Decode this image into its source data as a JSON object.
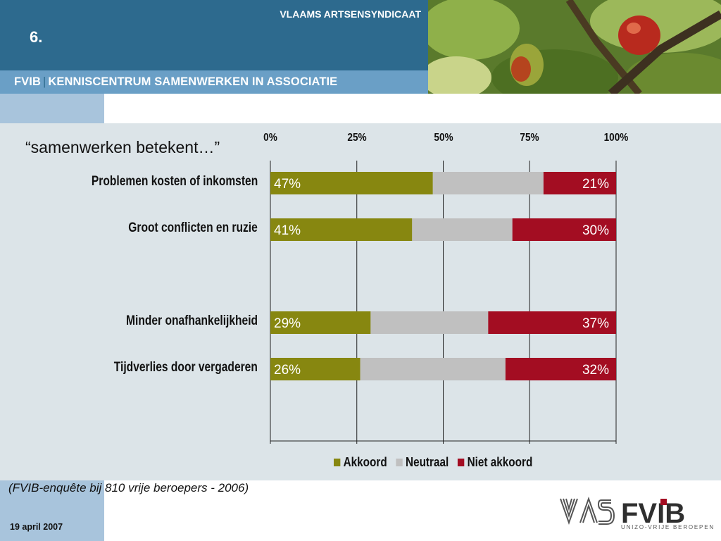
{
  "header": {
    "org_title": "VLAAMS ARTSENSYNDICAAT",
    "slide_number": "6.",
    "fvib": "FVIB",
    "separator": "|",
    "center_title": "KENNISCENTRUM SAMENWERKEN IN ASSOCIATIE"
  },
  "subtitle": "“samenwerken betekent…”",
  "colors": {
    "akkoord": "#878710",
    "neutraal": "#c0c0c0",
    "niet_akkoord": "#a30d22"
  },
  "chart_data": {
    "type": "bar",
    "orientation": "horizontal",
    "stacked": true,
    "stack_mode": "percent",
    "categories": [
      "Problemen kosten of inkomsten",
      "Groot conflicten en ruzie",
      "Minder onafhankelijkheid",
      "Tijdverlies door vergaderen"
    ],
    "series": [
      {
        "name": "Akkoord",
        "values": [
          47,
          41,
          29,
          26
        ],
        "labels": [
          "47%",
          "41%",
          "29%",
          "26%"
        ]
      },
      {
        "name": "Neutraal",
        "values": [
          32,
          29,
          34,
          42
        ],
        "labels": [
          "",
          "",
          "",
          ""
        ]
      },
      {
        "name": "Niet akkoord",
        "values": [
          21,
          30,
          37,
          32
        ],
        "labels": [
          "21%",
          "30%",
          "37%",
          "32%"
        ]
      }
    ],
    "x_ticks": [
      "0%",
      "25%",
      "50%",
      "75%",
      "100%"
    ],
    "xlim": [
      0,
      100
    ],
    "x_axis_position": "top",
    "grid": true,
    "legend": "bottom"
  },
  "source_note": "(FVIB-enquête bij 810 vrije beroepers - 2006)",
  "date": "19 april 2007",
  "logo": {
    "vas": "VAS",
    "fvib": "FVIB",
    "tagline": "UNIZO-VRIJE BEROEPEN"
  }
}
